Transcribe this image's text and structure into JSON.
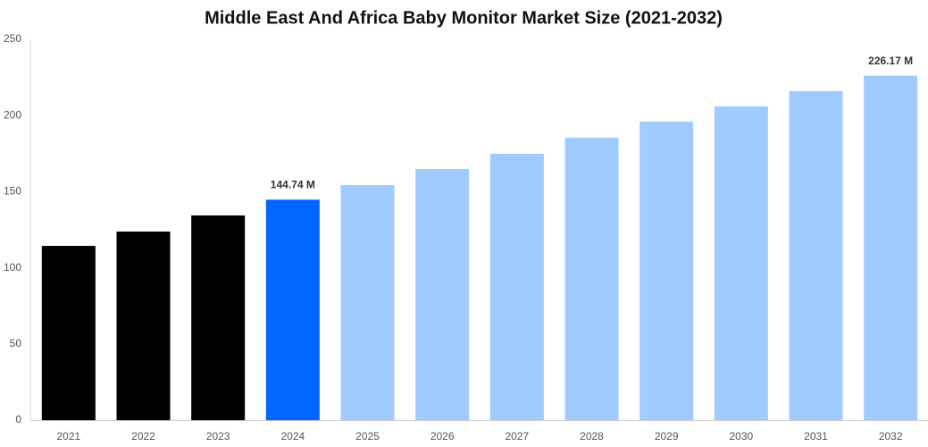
{
  "chart_data": {
    "type": "bar",
    "title": "Middle East And Africa Baby Monitor Market Size (2021-2032)",
    "categories": [
      "2021",
      "2022",
      "2023",
      "2024",
      "2025",
      "2026",
      "2027",
      "2028",
      "2029",
      "2030",
      "2031",
      "2032"
    ],
    "values": [
      114.4,
      123.8,
      134.4,
      144.74,
      154.3,
      164.9,
      174.9,
      185.4,
      196,
      206,
      216,
      226.17
    ],
    "value_labels": [
      null,
      null,
      null,
      "144.74 M",
      null,
      null,
      null,
      null,
      null,
      null,
      null,
      "226.17 M"
    ],
    "colors": [
      "#000000",
      "#000000",
      "#000000",
      "#0066ff",
      "#a0cbff",
      "#a0cbff",
      "#a0cbff",
      "#a0cbff",
      "#a0cbff",
      "#a0cbff",
      "#a0cbff",
      "#a0cbff"
    ],
    "ylim": [
      0,
      250
    ],
    "yticks": [
      0,
      50,
      100,
      150,
      200,
      250
    ],
    "grid": false
  }
}
